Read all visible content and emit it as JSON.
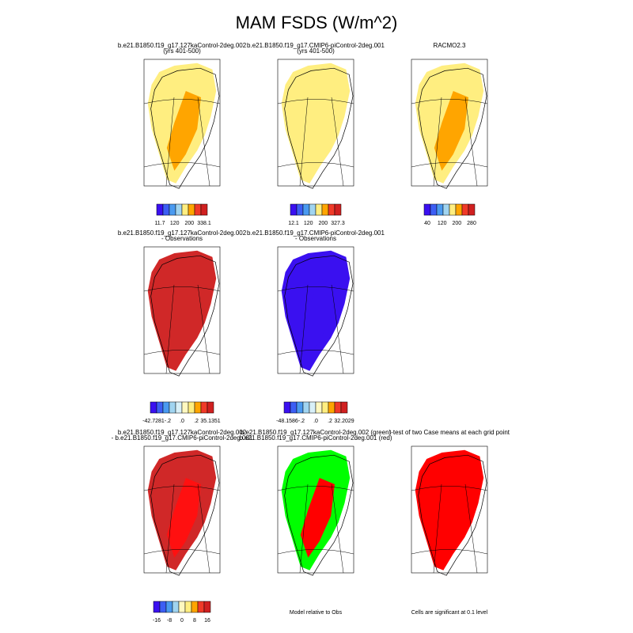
{
  "title": "MAM FSDS (W/m^2)",
  "panels": [
    {
      "title_lines": [
        "b.e21.B1850.f19_g17.127kaControl-2deg.002",
        "(yrs 401-500)"
      ],
      "map_colors": [
        "#ffee80",
        "#ffa500"
      ],
      "colorbar": {
        "colors": [
          "#3a10f0",
          "#3c5ef4",
          "#4a9af0",
          "#a0d4f0",
          "#ffee80",
          "#ffa500",
          "#f03a28",
          "#d02020"
        ],
        "labels": [
          "11.7",
          "120",
          "200",
          "338.1"
        ]
      }
    },
    {
      "title_lines": [
        "b.e21.B1850.f19_g17.CMIP6-piControl-2deg.001",
        "(yrs 401-500)"
      ],
      "map_colors": [
        "#ffee80",
        "#ffee80"
      ],
      "colorbar": {
        "colors": [
          "#3a10f0",
          "#3c5ef4",
          "#4a9af0",
          "#a0d4f0",
          "#ffee80",
          "#ffa500",
          "#f03a28",
          "#d02020"
        ],
        "labels": [
          "12.1",
          "120",
          "200",
          "327.3"
        ]
      }
    },
    {
      "title_lines": [
        "RACMO2.3"
      ],
      "map_colors": [
        "#ffee80",
        "#ffa500"
      ],
      "colorbar": {
        "colors": [
          "#3a10f0",
          "#3c5ef4",
          "#4a9af0",
          "#a0d4f0",
          "#ffee80",
          "#ffa500",
          "#f03a28",
          "#d02020"
        ],
        "labels": [
          "40",
          "120",
          "200",
          "280"
        ]
      }
    },
    {
      "title_lines": [
        "b.e21.B1850.f19_g17.127kaControl-2deg.002",
        "- Observations"
      ],
      "map_colors": [
        "#d02828",
        "#d02828"
      ],
      "colorbar": {
        "colors": [
          "#3a10f0",
          "#3c5ef4",
          "#4a9af0",
          "#a0d4f0",
          "#d8f0f8",
          "#fff8c0",
          "#ffee80",
          "#ffa500",
          "#f03a28",
          "#d02020"
        ],
        "labels": [
          "-42.7281",
          "-.2",
          ".0",
          ".2",
          "35.1351"
        ]
      }
    },
    {
      "title_lines": [
        "b.e21.B1850.f19_g17.CMIP6-piControl-2deg.001",
        "- Observations"
      ],
      "map_colors": [
        "#3a10f0",
        "#3a10f0"
      ],
      "colorbar": {
        "colors": [
          "#3a10f0",
          "#3c5ef4",
          "#4a9af0",
          "#a0d4f0",
          "#d8f0f8",
          "#fff8c0",
          "#ffee80",
          "#ffa500",
          "#f03a28",
          "#d02020"
        ],
        "labels": [
          "-48.1586",
          "-.2",
          ".0",
          ".2",
          "32.2029"
        ]
      }
    },
    {
      "title_lines": [
        "b.e21.B1850.f19_g17.127kaControl-2deg.002",
        "- b.e21.B1850.f19_g17.CMIP6-piControl-2deg.001"
      ],
      "map_colors": [
        "#d02828",
        "#ff1010"
      ],
      "colorbar": {
        "colors": [
          "#3a10f0",
          "#3c5ef4",
          "#4a9af0",
          "#a0d4f0",
          "#fff8c0",
          "#ffee80",
          "#ffa500",
          "#f03a28",
          "#d02020"
        ],
        "labels": [
          "-16",
          "-8",
          "0",
          "8",
          "16"
        ]
      }
    },
    {
      "title_lines": [
        "b.e21.B1850.f19_g17.127kaControl-2deg.002 (green)",
        "b.e21.B1850.f19_g17.CMIP6-piControl-2deg.001 (red)"
      ],
      "map_colors": [
        "#00ff00",
        "#ff0000"
      ],
      "note": "Model relative to Obs"
    },
    {
      "title_lines": [
        "t-test of two Case means at each grid point"
      ],
      "map_colors": [
        "#ff0000",
        "#ff0000"
      ],
      "note": "Cells are significant at 0.1 level"
    }
  ]
}
